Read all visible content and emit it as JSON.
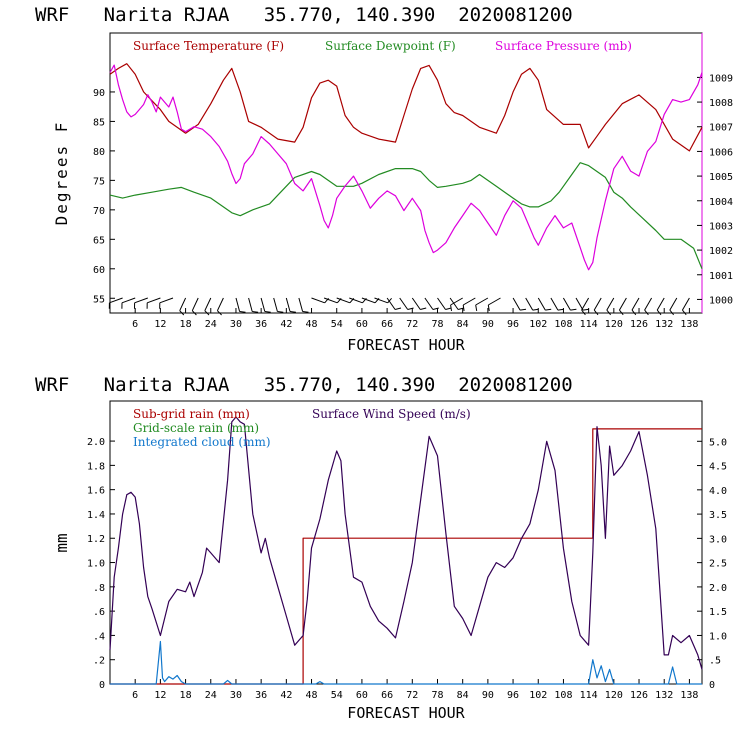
{
  "colors": {
    "temperature": "#aa0000",
    "dewpoint": "#228b22",
    "pressure": "#dd00dd",
    "subgrid_rain": "#aa0000",
    "grid_rain": "#228b22",
    "cloud": "#1177cc",
    "wind": "#330055",
    "axis": "#000000"
  },
  "chart_data": [
    {
      "type": "line",
      "title": "WRF   Narita RJAA   35.770, 140.390  2020081200",
      "xlabel": "FORECAST HOUR",
      "ylabel": "Degrees F",
      "xlim": [
        0,
        141
      ],
      "ylim": [
        52.5,
        100
      ],
      "y2lim": [
        999.45,
        1010.8
      ],
      "xticks": [
        6,
        12,
        18,
        24,
        30,
        36,
        42,
        48,
        54,
        60,
        66,
        72,
        78,
        84,
        90,
        96,
        102,
        108,
        114,
        120,
        126,
        132,
        138
      ],
      "yticks": [
        55,
        60,
        65,
        70,
        75,
        80,
        85,
        90
      ],
      "y2ticks": [
        1000,
        1001,
        1002,
        1003,
        1004,
        1005,
        1006,
        1007,
        1008,
        1009
      ],
      "legend": [
        "Surface Temperature (F)",
        "Surface Dewpoint (F)",
        "Surface Pressure (mb)"
      ],
      "series": [
        {
          "name": "Surface Temperature (F)",
          "axis": "left",
          "x": [
            0,
            2,
            4,
            6,
            8,
            10,
            12,
            14,
            18,
            21,
            24,
            27,
            29,
            31,
            33,
            36,
            40,
            44,
            46,
            48,
            50,
            52,
            54,
            56,
            58,
            60,
            64,
            68,
            70,
            72,
            74,
            76,
            78,
            80,
            82,
            84,
            88,
            92,
            94,
            96,
            98,
            100,
            102,
            104,
            108,
            112,
            114,
            116,
            118,
            122,
            126,
            130,
            134,
            138,
            141
          ],
          "values": [
            93,
            94,
            94.8,
            93,
            90,
            88.5,
            87,
            85,
            83,
            84.5,
            88,
            92,
            94,
            90,
            85,
            84,
            82,
            81.5,
            84,
            89,
            91.5,
            92,
            91,
            86,
            84,
            83,
            82,
            81.5,
            86,
            90.5,
            94,
            94.5,
            92,
            88,
            86.5,
            86,
            84,
            83,
            86,
            90,
            93,
            94,
            92,
            87,
            84.5,
            84.5,
            80.5,
            82.5,
            84.5,
            88,
            89.5,
            87,
            82,
            80,
            84
          ]
        },
        {
          "name": "Surface Dewpoint (F)",
          "axis": "left",
          "x": [
            0,
            3,
            6,
            10,
            14,
            17,
            20,
            24,
            27,
            29,
            31,
            34,
            38,
            40,
            44,
            48,
            50,
            54,
            58,
            60,
            64,
            68,
            70,
            72,
            74,
            76,
            78,
            80,
            84,
            86,
            88,
            92,
            96,
            98,
            100,
            102,
            105,
            107,
            110,
            112,
            114,
            116,
            118,
            120,
            122,
            124,
            127,
            130,
            132,
            136,
            139,
            141
          ],
          "values": [
            72.5,
            72,
            72.5,
            73,
            73.5,
            73.8,
            73,
            72,
            70.5,
            69.5,
            69,
            70,
            71,
            72.5,
            75.5,
            76.5,
            76,
            74,
            74,
            74.5,
            76,
            77,
            77,
            77,
            76.5,
            75,
            73.8,
            74,
            74.5,
            75,
            76,
            74,
            72,
            71,
            70.5,
            70.5,
            71.5,
            73,
            76,
            78,
            77.5,
            76.5,
            75.5,
            73,
            72,
            70.5,
            68.5,
            66.5,
            65,
            65,
            63.5,
            60
          ]
        },
        {
          "name": "Surface Pressure (mb)",
          "axis": "right",
          "x": [
            0,
            1,
            2,
            3,
            4,
            5,
            6,
            7,
            8,
            9,
            10,
            11,
            12,
            13,
            14,
            15,
            16,
            17,
            18,
            20,
            22,
            24,
            26,
            28,
            29,
            30,
            31,
            32,
            34,
            36,
            38,
            40,
            42,
            44,
            46,
            48,
            50,
            51,
            52,
            53,
            54,
            56,
            58,
            60,
            62,
            64,
            66,
            68,
            70,
            72,
            74,
            75,
            76,
            77,
            78,
            80,
            82,
            84,
            86,
            88,
            90,
            92,
            94,
            96,
            98,
            99,
            100,
            101,
            102,
            104,
            106,
            108,
            110,
            112,
            113,
            114,
            115,
            116,
            118,
            120,
            122,
            124,
            126,
            128,
            130,
            132,
            134,
            136,
            138,
            140,
            141
          ],
          "values": [
            1009.2,
            1009.5,
            1008.7,
            1008.1,
            1007.6,
            1007.4,
            1007.5,
            1007.7,
            1007.9,
            1008.3,
            1008.0,
            1007.6,
            1008.2,
            1008.0,
            1007.8,
            1008.2,
            1007.6,
            1006.9,
            1006.8,
            1007.0,
            1006.9,
            1006.6,
            1006.2,
            1005.6,
            1005.1,
            1004.7,
            1004.9,
            1005.5,
            1005.9,
            1006.6,
            1006.3,
            1005.9,
            1005.5,
            1004.7,
            1004.4,
            1004.9,
            1003.8,
            1003.2,
            1002.9,
            1003.4,
            1004.1,
            1004.6,
            1005.0,
            1004.4,
            1003.7,
            1004.1,
            1004.4,
            1004.2,
            1003.6,
            1004.1,
            1003.6,
            1002.8,
            1002.3,
            1001.9,
            1002.0,
            1002.3,
            1002.9,
            1003.4,
            1003.9,
            1003.6,
            1003.1,
            1002.6,
            1003.4,
            1004.0,
            1003.7,
            1003.3,
            1002.9,
            1002.5,
            1002.2,
            1002.9,
            1003.4,
            1002.9,
            1003.1,
            1002.1,
            1001.6,
            1001.2,
            1001.5,
            1002.5,
            1004.0,
            1005.3,
            1005.8,
            1005.2,
            1005.0,
            1006.0,
            1006.4,
            1007.5,
            1008.1,
            1008.0,
            1008.1,
            1008.7,
            1009.2
          ]
        }
      ]
    },
    {
      "type": "line",
      "title": "WRF   Narita RJAA   35.770, 140.390  2020081200",
      "xlabel": "FORECAST HOUR",
      "ylabel": "mm",
      "xlim": [
        0,
        141
      ],
      "ylim": [
        0,
        2.33
      ],
      "y2lim": [
        0,
        5.83
      ],
      "xticks": [
        6,
        12,
        18,
        24,
        30,
        36,
        42,
        48,
        54,
        60,
        66,
        72,
        78,
        84,
        90,
        96,
        102,
        108,
        114,
        120,
        126,
        132,
        138
      ],
      "yticks": [
        "0",
        ".2",
        ".4",
        ".6",
        ".8",
        "1.0",
        "1.2",
        "1.4",
        "1.6",
        "1.8",
        "2.0"
      ],
      "y2ticks": [
        "0",
        ".5",
        "1.0",
        "1.5",
        "2.0",
        "2.5",
        "3.0",
        "3.5",
        "4.0",
        "4.5",
        "5.0"
      ],
      "legend": [
        "Sub-grid rain (mm)",
        "Grid-scale rain (mm)",
        "Integrated cloud (mm)",
        "Surface Wind Speed (m/s)"
      ],
      "series": [
        {
          "name": "Sub-grid rain (mm)",
          "axis": "left",
          "x": [
            0,
            46,
            46,
            115,
            115,
            141
          ],
          "values": [
            0,
            0,
            1.2,
            1.2,
            2.1,
            2.1
          ]
        },
        {
          "name": "Integrated cloud (mm)",
          "axis": "left",
          "x": [
            0,
            11,
            12,
            12.5,
            13,
            14,
            15,
            16,
            17,
            18,
            27,
            28,
            29,
            49,
            50,
            51,
            114,
            115,
            116,
            117,
            118,
            119,
            120,
            133,
            134,
            135,
            141
          ],
          "values": [
            0,
            0,
            0.35,
            0.05,
            0.02,
            0.06,
            0.04,
            0.07,
            0.02,
            0,
            0,
            0.03,
            0,
            0,
            0.02,
            0,
            0,
            0.2,
            0.05,
            0.15,
            0.02,
            0.12,
            0,
            0,
            0.14,
            0,
            0
          ]
        },
        {
          "name": "Surface Wind Speed (m/s)",
          "axis": "right",
          "x": [
            0,
            1,
            2,
            3,
            4,
            5,
            6,
            7,
            8,
            9,
            10,
            12,
            14,
            16,
            18,
            19,
            20,
            22,
            23,
            24,
            26,
            28,
            29,
            30,
            31,
            32,
            34,
            36,
            37,
            38,
            40,
            42,
            44,
            46,
            47,
            48,
            50,
            52,
            54,
            55,
            56,
            58,
            60,
            62,
            64,
            66,
            68,
            70,
            72,
            74,
            76,
            78,
            80,
            82,
            84,
            86,
            88,
            90,
            92,
            94,
            96,
            98,
            100,
            102,
            104,
            106,
            108,
            110,
            112,
            114,
            115,
            116,
            117,
            118,
            119,
            120,
            122,
            124,
            126,
            128,
            130,
            132,
            133,
            134,
            136,
            138,
            140,
            141
          ],
          "values": [
            0.7,
            2.2,
            2.8,
            3.5,
            3.9,
            3.95,
            3.85,
            3.3,
            2.4,
            1.8,
            1.55,
            1.0,
            1.7,
            1.95,
            1.9,
            2.1,
            1.8,
            2.3,
            2.8,
            2.7,
            2.5,
            4.2,
            5.4,
            5.5,
            5.4,
            5.35,
            3.5,
            2.7,
            3.0,
            2.6,
            2.0,
            1.4,
            0.8,
            1.0,
            1.75,
            2.8,
            3.4,
            4.2,
            4.8,
            4.6,
            3.5,
            2.2,
            2.1,
            1.6,
            1.3,
            1.15,
            0.95,
            1.7,
            2.5,
            3.8,
            5.1,
            4.7,
            3.1,
            1.6,
            1.35,
            1.0,
            1.6,
            2.2,
            2.5,
            2.4,
            2.6,
            3.0,
            3.3,
            4.0,
            5.0,
            4.4,
            2.8,
            1.7,
            1.0,
            0.8,
            2.7,
            5.3,
            4.5,
            3.0,
            4.9,
            4.3,
            4.5,
            4.8,
            5.2,
            4.3,
            3.2,
            0.6,
            0.6,
            1.0,
            0.85,
            1.0,
            0.6,
            0.3
          ]
        }
      ]
    }
  ]
}
